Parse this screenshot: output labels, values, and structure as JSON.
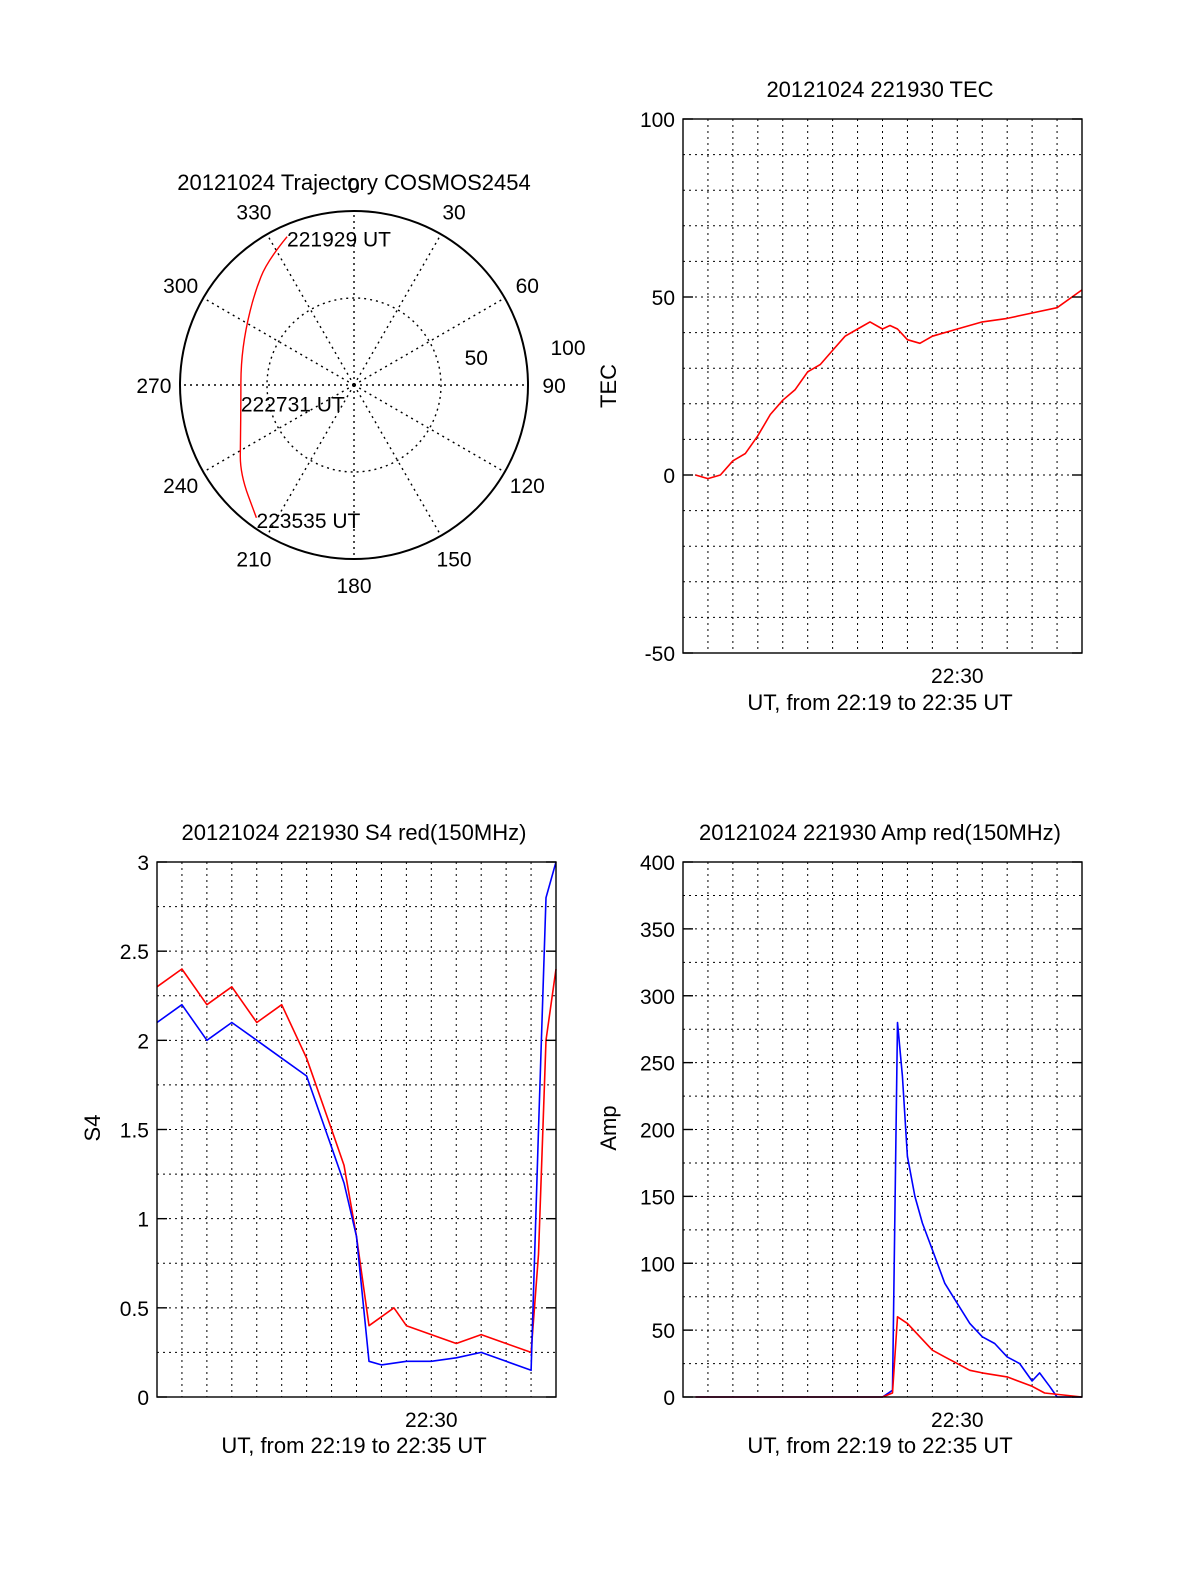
{
  "chart_data": [
    {
      "type": "polar",
      "id": "trajectory",
      "title": "20121024 Trajectory COSMOS2454",
      "azimuth_labels": [
        "0",
        "30",
        "60",
        "90",
        "120",
        "150",
        "180",
        "210",
        "240",
        "270",
        "300",
        "330"
      ],
      "elevation_ring_labels": [
        "50",
        "100"
      ],
      "series": [
        {
          "color": "#ff0000",
          "azimuth": [
            335.7,
            325,
            313,
            297,
            280,
            261.7,
            245,
            232,
            216.3
          ],
          "zenith_radius": [
            93.5,
            87,
            78,
            70,
            66,
            65.7,
            72,
            83,
            94.7
          ]
        }
      ],
      "annotations": [
        {
          "text": "221929 UT",
          "azimuth": 335.7,
          "zenith_radius": 93.5
        },
        {
          "text": "222731 UT",
          "azimuth": 261.7,
          "zenith_radius": 65.7
        },
        {
          "text": "223535 UT",
          "azimuth": 216.3,
          "zenith_radius": 94.7
        }
      ]
    },
    {
      "type": "line",
      "id": "tec",
      "title": "20121024 221930 TEC",
      "xlabel": "UT, from 22:19 to 22:35 UT",
      "ylabel": "TEC",
      "xlim": [
        "22:19",
        "22:35"
      ],
      "ylim": [
        -50,
        100
      ],
      "yticks": [
        -50,
        0,
        50,
        100
      ],
      "xtick_labels": [
        {
          "x": "22:30",
          "label": "22:30"
        }
      ],
      "grid": true,
      "series": [
        {
          "color": "#ff0000",
          "x": [
            "22:19.5",
            "22:20.0",
            "22:20.5",
            "22:21.0",
            "22:21.5",
            "22:22.0",
            "22:22.5",
            "22:23.0",
            "22:23.5",
            "22:24.0",
            "22:24.5",
            "22:25.0",
            "22:25.5",
            "22:26.0",
            "22:26.5",
            "22:27.0",
            "22:27.3",
            "22:27.6",
            "22:28.0",
            "22:28.5",
            "22:29.0",
            "22:30.0",
            "22:31.0",
            "22:32.0",
            "22:33.0",
            "22:34.0",
            "22:35.0"
          ],
          "y": [
            0,
            -1,
            0,
            4,
            6,
            11,
            17,
            21,
            24,
            29,
            31,
            35,
            39,
            41,
            43,
            41,
            42,
            41,
            38,
            37,
            39,
            41,
            43,
            44,
            45.5,
            47,
            52
          ]
        }
      ]
    },
    {
      "type": "line",
      "id": "s4",
      "title": "20121024 221930 S4 red(150MHz)",
      "xlabel": "UT, from 22:19 to 22:35 UT",
      "ylabel": "S4",
      "xlim": [
        "22:19",
        "22:35"
      ],
      "ylim": [
        0,
        3
      ],
      "yticks": [
        0,
        0.5,
        1,
        1.5,
        2,
        2.5,
        3
      ],
      "xtick_labels": [
        {
          "x": "22:30",
          "label": "22:30"
        }
      ],
      "grid": true,
      "series": [
        {
          "color": "#ff0000",
          "x": [
            "22:19.0",
            "22:20.0",
            "22:21.0",
            "22:22.0",
            "22:23.0",
            "22:24.0",
            "22:25.0",
            "22:26.0",
            "22:26.5",
            "22:27.0",
            "22:27.5",
            "22:28.0",
            "22:28.5",
            "22:29.0",
            "22:30.0",
            "22:31.0",
            "22:32.0",
            "22:33.0",
            "22:34.0",
            "22:34.3",
            "22:34.6",
            "22:35.0"
          ],
          "y": [
            2.3,
            2.4,
            2.2,
            2.3,
            2.1,
            2.2,
            1.9,
            1.5,
            1.3,
            0.9,
            0.4,
            0.45,
            0.5,
            0.4,
            0.35,
            0.3,
            0.35,
            0.3,
            0.25,
            0.8,
            2.0,
            2.4
          ]
        },
        {
          "color": "#0000ff",
          "x": [
            "22:19.0",
            "22:20.0",
            "22:21.0",
            "22:22.0",
            "22:23.0",
            "22:24.0",
            "22:25.0",
            "22:26.0",
            "22:26.5",
            "22:27.0",
            "22:27.5",
            "22:28.0",
            "22:29.0",
            "22:30.0",
            "22:31.0",
            "22:32.0",
            "22:33.0",
            "22:34.0",
            "22:34.3",
            "22:34.6",
            "22:35.0"
          ],
          "y": [
            2.1,
            2.2,
            2.0,
            2.1,
            2.0,
            1.9,
            1.8,
            1.4,
            1.2,
            0.9,
            0.2,
            0.18,
            0.2,
            0.2,
            0.22,
            0.25,
            0.2,
            0.15,
            1.5,
            2.8,
            3.0
          ]
        }
      ]
    },
    {
      "type": "line",
      "id": "amp",
      "title": "20121024 221930 Amp red(150MHz)",
      "xlabel": "UT, from 22:19 to 22:35 UT",
      "ylabel": "Amp",
      "xlim": [
        "22:19",
        "22:35"
      ],
      "ylim": [
        0,
        400
      ],
      "yticks": [
        0,
        50,
        100,
        150,
        200,
        250,
        300,
        350,
        400
      ],
      "xtick_labels": [
        {
          "x": "22:30",
          "label": "22:30"
        }
      ],
      "grid": true,
      "series": [
        {
          "color": "#0000ff",
          "x": [
            "22:19.5",
            "22:27.0",
            "22:27.4",
            "22:27.6",
            "22:27.8",
            "22:28.0",
            "22:28.3",
            "22:28.6",
            "22:29.0",
            "22:29.5",
            "22:30.0",
            "22:30.5",
            "22:31.0",
            "22:31.5",
            "22:32.0",
            "22:32.5",
            "22:33.0",
            "22:33.3",
            "22:33.7",
            "22:34.0",
            "22:35.0"
          ],
          "y": [
            0,
            0,
            5,
            280,
            240,
            180,
            150,
            130,
            110,
            85,
            70,
            55,
            45,
            40,
            30,
            25,
            12,
            18,
            8,
            0,
            0
          ]
        },
        {
          "color": "#ff0000",
          "x": [
            "22:19.5",
            "22:27.0",
            "22:27.4",
            "22:27.6",
            "22:28.0",
            "22:28.5",
            "22:29.0",
            "22:29.5",
            "22:30.0",
            "22:30.5",
            "22:31.0",
            "22:32.0",
            "22:33.0",
            "22:33.5",
            "22:35.0"
          ],
          "y": [
            0,
            0,
            3,
            60,
            55,
            45,
            35,
            30,
            25,
            20,
            18,
            15,
            8,
            3,
            0
          ]
        }
      ]
    }
  ]
}
